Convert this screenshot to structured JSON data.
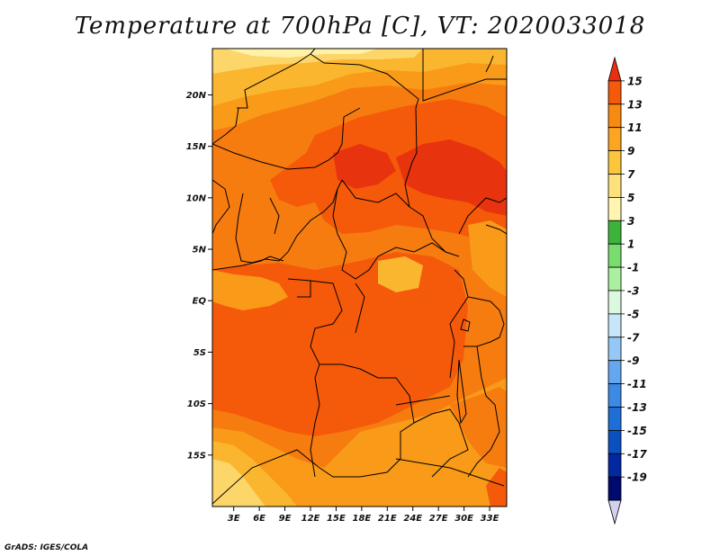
{
  "title": "Temperature at 700hPa [C], VT: 2020033018",
  "credit": "GrADS: IGES/COLA",
  "axes": {
    "lat_labels": [
      {
        "value": 20,
        "label": "20N"
      },
      {
        "value": 15,
        "label": "15N"
      },
      {
        "value": 10,
        "label": "10N"
      },
      {
        "value": 5,
        "label": "5N"
      },
      {
        "value": 0,
        "label": "EQ"
      },
      {
        "value": -5,
        "label": "5S"
      },
      {
        "value": -10,
        "label": "10S"
      },
      {
        "value": -15,
        "label": "15S"
      }
    ],
    "lon_labels": [
      {
        "value": 3,
        "label": "3E"
      },
      {
        "value": 6,
        "label": "6E"
      },
      {
        "value": 9,
        "label": "9E"
      },
      {
        "value": 12,
        "label": "12E"
      },
      {
        "value": 15,
        "label": "15E"
      },
      {
        "value": 18,
        "label": "18E"
      },
      {
        "value": 21,
        "label": "21E"
      },
      {
        "value": 24,
        "label": "24E"
      },
      {
        "value": 27,
        "label": "27E"
      },
      {
        "value": 30,
        "label": "30E"
      },
      {
        "value": 33,
        "label": "33E"
      }
    ],
    "lon_range": [
      0.5,
      35
    ],
    "lat_range": [
      -20,
      24.5
    ]
  },
  "colorbar": {
    "labels": [
      "15",
      "13",
      "11",
      "9",
      "7",
      "5",
      "3",
      "1",
      "-1",
      "-3",
      "-5",
      "-7",
      "-9",
      "-11",
      "-13",
      "-15",
      "-17",
      "-19"
    ],
    "colors": [
      "#e83010",
      "#f55a0a",
      "#f88a10",
      "#fba520",
      "#fcc63c",
      "#fde17a",
      "#fff5b0",
      "#3cb43c",
      "#78dc6e",
      "#aaf0a0",
      "#ddf8e0",
      "#c8e6fa",
      "#96c8f5",
      "#64a6f0",
      "#3c8ae6",
      "#1e6ed7",
      "#0a50be",
      "#0028a0",
      "#000a6e",
      "#d2d2f0"
    ]
  },
  "map_colors": {
    "t11": "#f77c10",
    "t13": "#f55a0a",
    "t9": "#f99a18",
    "t7": "#fbb630",
    "t5": "#fdd66a",
    "t3": "#fff2a8",
    "t15": "#e8340e"
  }
}
